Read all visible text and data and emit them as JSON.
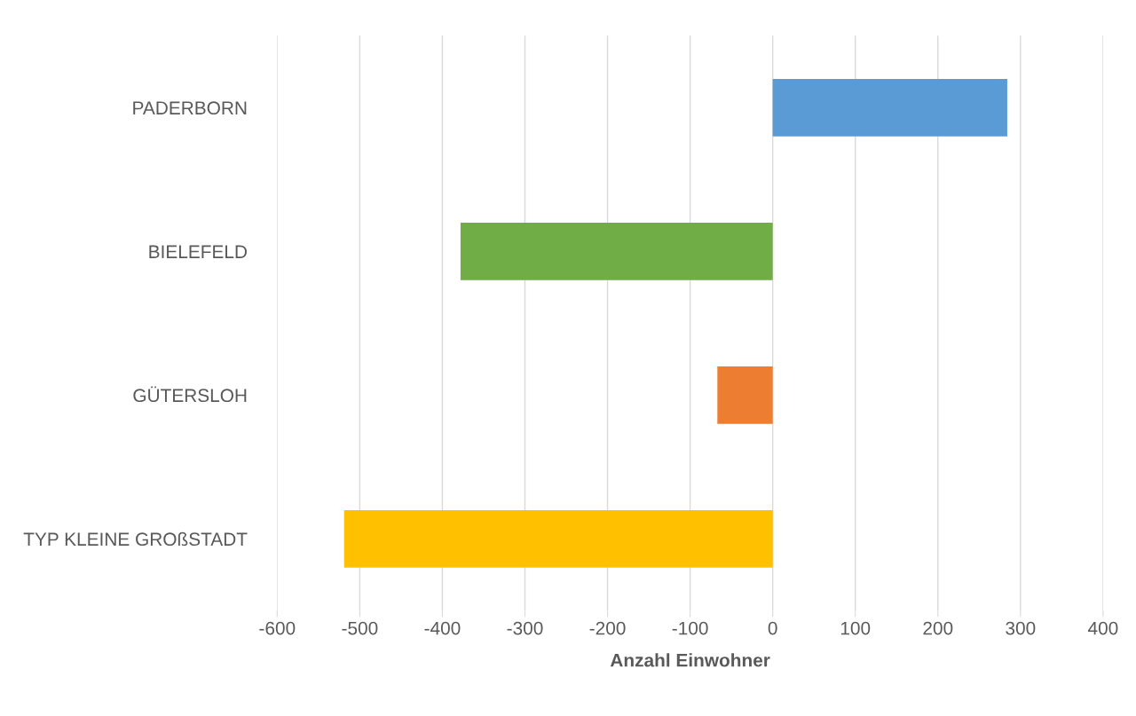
{
  "chart_data": {
    "type": "bar",
    "orientation": "horizontal",
    "xlabel": "Anzahl Einwohner",
    "categories": [
      "PADERBORN",
      "BIELEFELD",
      "GÜTERSLOH",
      "TYP KLEINE GROßSTADT"
    ],
    "values": [
      284,
      -378,
      -67,
      -519
    ],
    "colors": [
      "#5b9bd5",
      "#70ad47",
      "#ed7d31",
      "#ffc000"
    ],
    "xlim": [
      -600,
      400
    ],
    "xticks": [
      -600,
      -500,
      -400,
      -300,
      -200,
      -100,
      0,
      100,
      200,
      300,
      400
    ],
    "grid": "x",
    "legend": false
  }
}
